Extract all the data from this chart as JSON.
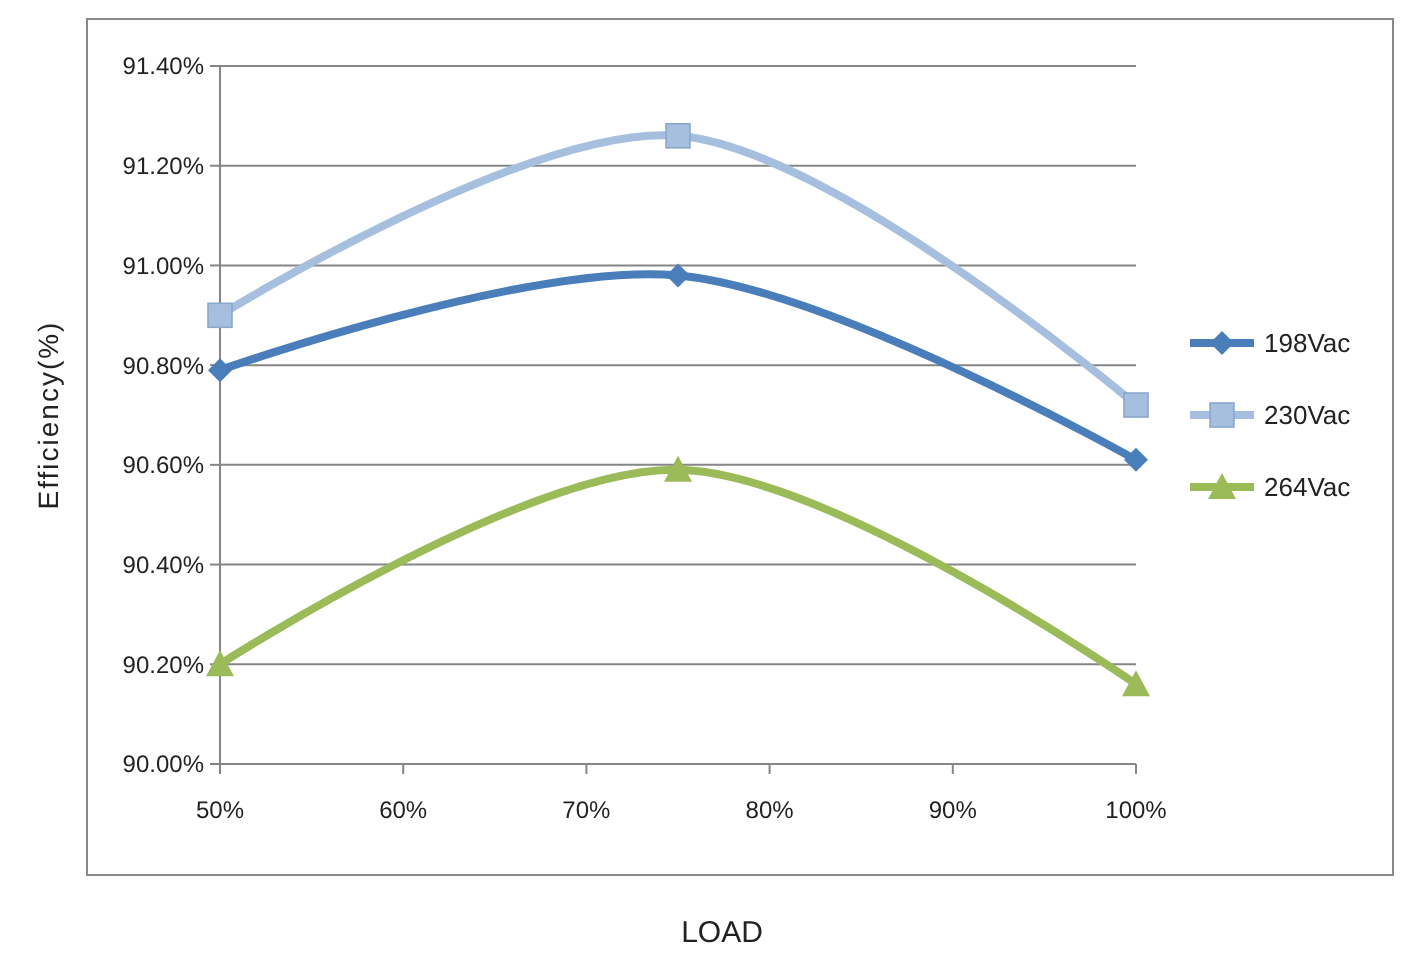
{
  "chart_data": {
    "type": "line",
    "xlabel": "LOAD",
    "ylabel": "Efficiency(%)",
    "x": [
      50,
      75,
      100
    ],
    "xlim": [
      50,
      100
    ],
    "xticks": [
      {
        "value": 50,
        "label": "50%"
      },
      {
        "value": 60,
        "label": "60%"
      },
      {
        "value": 70,
        "label": "70%"
      },
      {
        "value": 80,
        "label": "80%"
      },
      {
        "value": 90,
        "label": "90%"
      },
      {
        "value": 100,
        "label": "100%"
      }
    ],
    "ylim": [
      90.0,
      91.4
    ],
    "yticks": [
      {
        "value": 90.0,
        "label": "90.00%"
      },
      {
        "value": 90.2,
        "label": "90.20%"
      },
      {
        "value": 90.4,
        "label": "90.40%"
      },
      {
        "value": 90.6,
        "label": "90.60%"
      },
      {
        "value": 90.8,
        "label": "90.80%"
      },
      {
        "value": 91.0,
        "label": "91.00%"
      },
      {
        "value": 91.2,
        "label": "91.20%"
      },
      {
        "value": 91.4,
        "label": "91.40%"
      }
    ],
    "grid": "y",
    "legend": "right",
    "series": [
      {
        "name": "198Vac",
        "color": "#4a7ebb",
        "marker": "diamond",
        "values": [
          90.79,
          90.98,
          90.61
        ]
      },
      {
        "name": "230Vac",
        "color": "#a7bfde",
        "marker": "square",
        "values": [
          90.9,
          91.26,
          90.72
        ]
      },
      {
        "name": "264Vac",
        "color": "#9bbb59",
        "marker": "triangle",
        "values": [
          90.2,
          90.59,
          90.16
        ]
      }
    ]
  }
}
